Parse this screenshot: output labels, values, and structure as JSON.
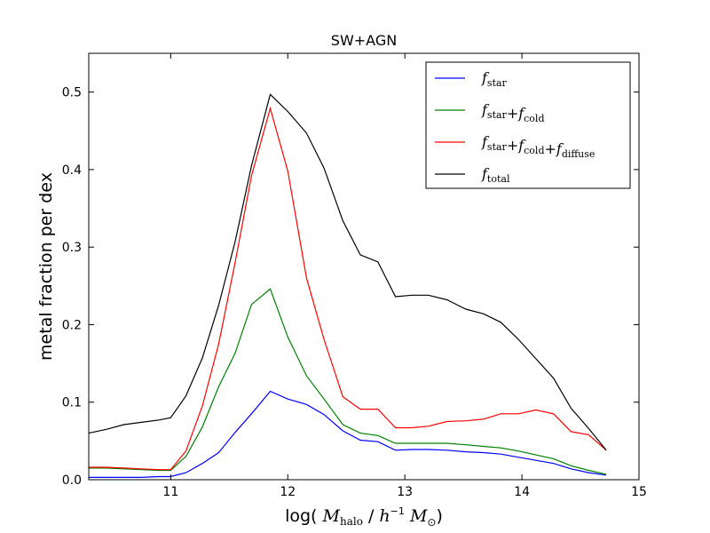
{
  "chart_data": {
    "type": "line",
    "title": "SW+AGN",
    "xlabel": "log( M_halo / h^-1 M_⊙)",
    "ylabel": "metal fraction per dex",
    "xlim": [
      10.3,
      15.0
    ],
    "ylim": [
      0.0,
      0.55
    ],
    "x_ticks": [
      11,
      12,
      13,
      14,
      15
    ],
    "y_ticks": [
      0.0,
      0.1,
      0.2,
      0.3,
      0.4,
      0.5
    ],
    "x_tick_labels": [
      "11",
      "12",
      "13",
      "14",
      "15"
    ],
    "y_tick_labels": [
      "0.0",
      "0.1",
      "0.2",
      "0.3",
      "0.4",
      "0.5"
    ],
    "legend_position": "top-right",
    "x": [
      10.3,
      10.45,
      10.6,
      10.75,
      10.9,
      11.0,
      11.13,
      11.27,
      11.41,
      11.55,
      11.69,
      11.85,
      12.0,
      12.16,
      12.31,
      12.47,
      12.62,
      12.77,
      12.92,
      13.06,
      13.2,
      13.36,
      13.52,
      13.67,
      13.82,
      13.97,
      14.12,
      14.27,
      14.42,
      14.57,
      14.72
    ],
    "series": [
      {
        "name": "f_star",
        "label_main": "f",
        "label_sub": "star",
        "label_suffix": "",
        "color": "#0000ff",
        "values": [
          0.003,
          0.003,
          0.003,
          0.003,
          0.004,
          0.004,
          0.009,
          0.021,
          0.035,
          0.061,
          0.085,
          0.114,
          0.104,
          0.097,
          0.084,
          0.063,
          0.051,
          0.049,
          0.038,
          0.039,
          0.039,
          0.038,
          0.036,
          0.035,
          0.033,
          0.029,
          0.025,
          0.021,
          0.014,
          0.009,
          0.006
        ]
      },
      {
        "name": "f_star+f_cold",
        "label_main": "f",
        "label_sub": "star",
        "label_suffix": "+f cold",
        "color": "#008000",
        "values": [
          0.015,
          0.015,
          0.014,
          0.013,
          0.012,
          0.012,
          0.03,
          0.068,
          0.12,
          0.163,
          0.226,
          0.246,
          0.184,
          0.134,
          0.104,
          0.071,
          0.06,
          0.057,
          0.047,
          0.047,
          0.047,
          0.047,
          0.045,
          0.043,
          0.041,
          0.037,
          0.032,
          0.027,
          0.018,
          0.012,
          0.007
        ]
      },
      {
        "name": "f_star+f_cold+f_diffuse",
        "label_main": "f",
        "label_sub": "star",
        "label_suffix": "+f cold+f diffuse",
        "color": "#ff0000",
        "values": [
          0.016,
          0.016,
          0.015,
          0.014,
          0.013,
          0.013,
          0.037,
          0.095,
          0.175,
          0.28,
          0.392,
          0.479,
          0.398,
          0.26,
          0.181,
          0.107,
          0.091,
          0.091,
          0.067,
          0.067,
          0.069,
          0.075,
          0.076,
          0.078,
          0.085,
          0.085,
          0.09,
          0.085,
          0.062,
          0.058,
          0.038
        ]
      },
      {
        "name": "f_total",
        "label_main": "f",
        "label_sub": "total",
        "label_suffix": "",
        "color": "#000000",
        "values": [
          0.06,
          0.065,
          0.071,
          0.074,
          0.077,
          0.08,
          0.108,
          0.157,
          0.225,
          0.307,
          0.405,
          0.497,
          0.475,
          0.447,
          0.402,
          0.334,
          0.29,
          0.281,
          0.236,
          0.238,
          0.238,
          0.232,
          0.22,
          0.214,
          0.203,
          0.181,
          0.156,
          0.131,
          0.092,
          0.066,
          0.038
        ]
      }
    ]
  }
}
